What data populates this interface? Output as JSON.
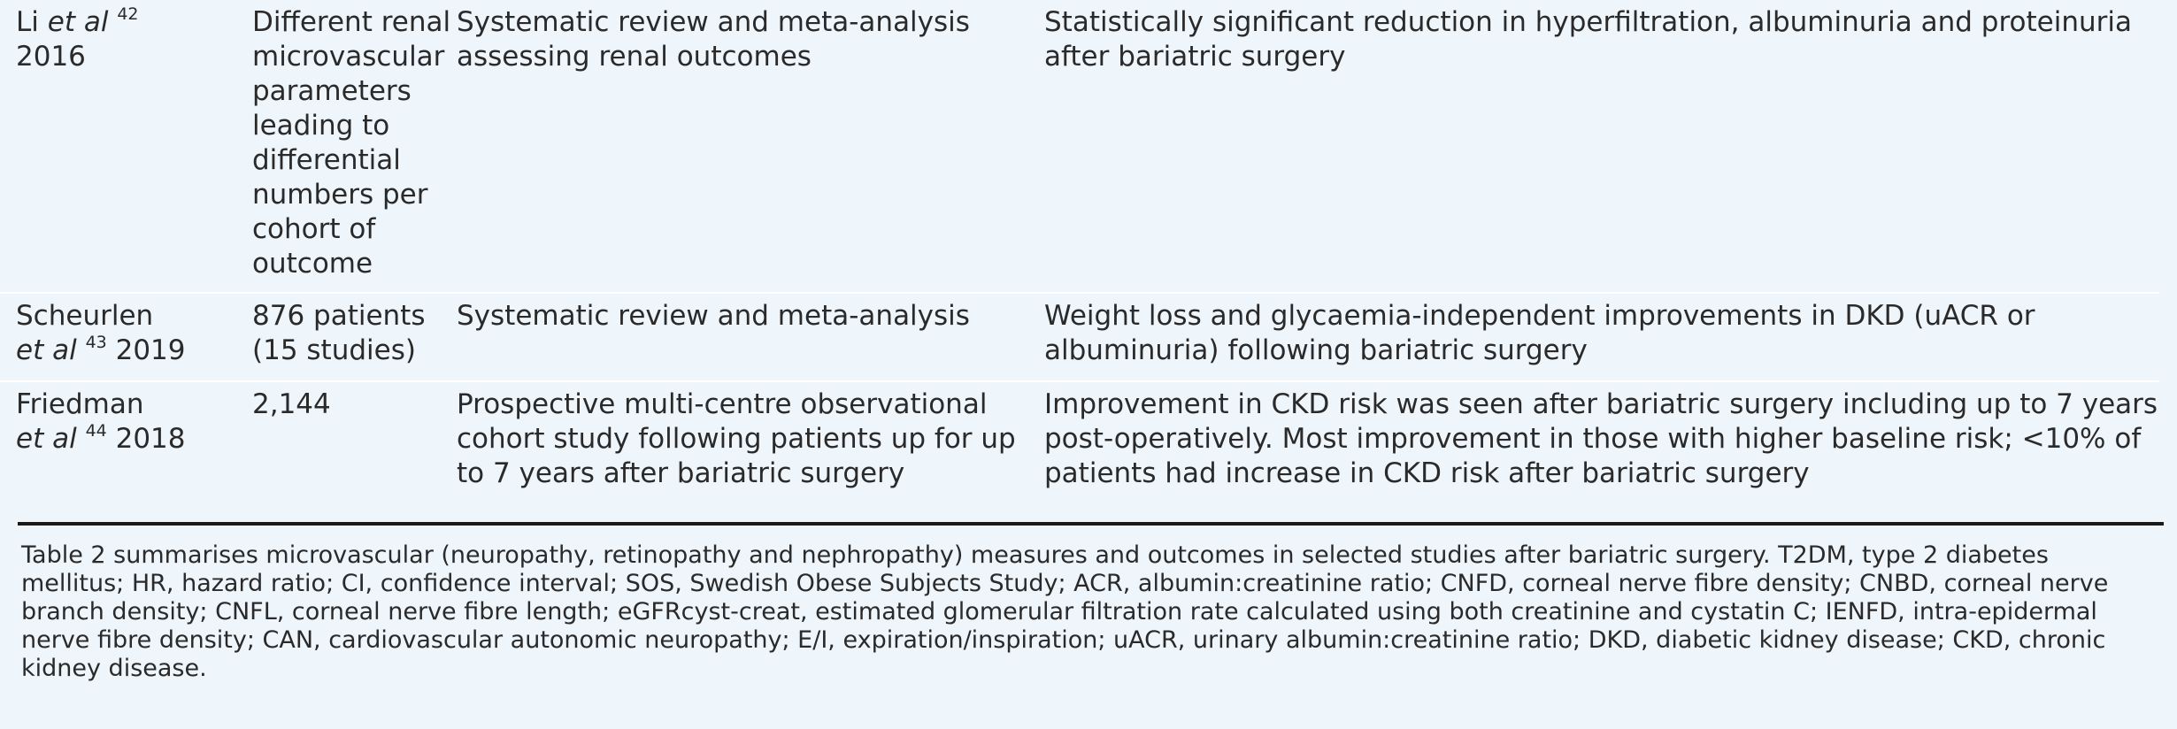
{
  "rows": [
    {
      "author": "Li",
      "etal": "et al",
      "ref": "42",
      "year": "2016",
      "population": "Different renal microvascular parameters leading to differential numbers per cohort of outcome",
      "design": "Systematic review and meta-analysis assessing renal outcomes",
      "outcome": "Statistically significant reduction in hyperfiltration, albuminuria and proteinuria after bariatric surgery"
    },
    {
      "author": "Scheurlen",
      "etal": "et al",
      "ref": "43",
      "year": "2019",
      "population": "876 patients (15 studies)",
      "design": "Systematic review and meta-analysis",
      "outcome": "Weight loss and glycaemia-independent improvements in DKD (uACR or albuminuria) following bariatric surgery"
    },
    {
      "author": "Friedman",
      "etal": "et al",
      "ref": "44",
      "year": "2018",
      "population": "2,144",
      "design": "Prospective multi-centre observational cohort study following patients up for up to 7 years after bariatric surgery",
      "outcome": "Improvement in CKD risk was seen after bariatric surgery including up to 7 years post-operatively. Most improvement in those with higher baseline risk; <10% of patients had increase in CKD risk after bariatric surgery"
    }
  ],
  "footnote": "Table 2 summarises microvascular (neuropathy, retinopathy and nephropathy) measures and outcomes in selected studies after bariatric surgery. T2DM, type 2 diabetes mellitus; HR, hazard ratio; CI, confidence interval; SOS, Swedish Obese Subjects Study; ACR, albumin:creatinine ratio; CNFD, corneal nerve fibre density; CNBD, corneal nerve branch density; CNFL, corneal nerve fibre length; eGFRcyst-creat, estimated glomerular filtration rate calculated using both creatinine and cystatin C; IENFD, intra-epidermal nerve fibre density; CAN, cardiovascular autonomic neuropathy; E/I, expiration/inspiration; uACR, urinary albumin:creatinine ratio; DKD, diabetic kidney disease; CKD,  chronic kidney disease."
}
